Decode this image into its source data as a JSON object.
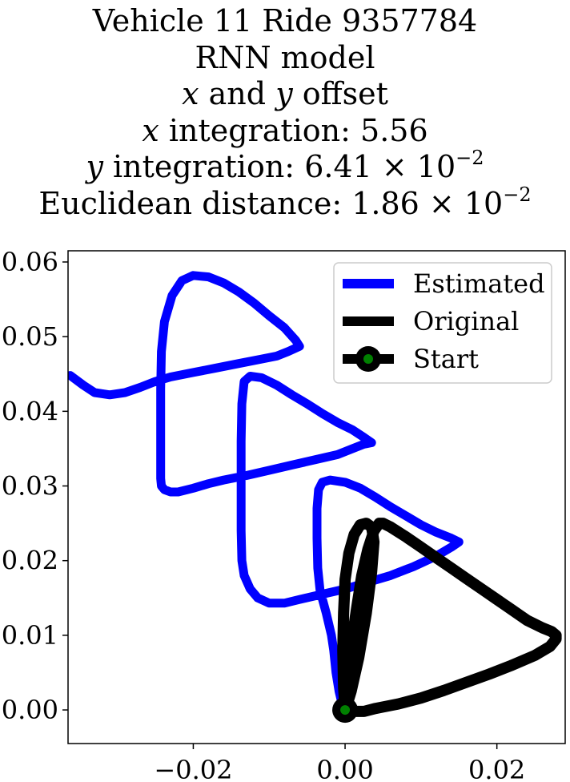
{
  "title": {
    "line1": "Vehicle 11 Ride 9357784",
    "line2": "RNN model",
    "line3_var_x": "x",
    "line3_mid": " and ",
    "line3_var_y": "y",
    "line3_end": " offset",
    "line4_var": "x",
    "line4_text": " integration: 5.56",
    "line5_var": "y",
    "line5_text": " integration: 6.41 × 10",
    "line5_exp": "−2",
    "line6_text": "Euclidean distance: 1.86 × 10",
    "line6_exp": "−2"
  },
  "chart_data": {
    "type": "line",
    "xlim": [
      -0.0365,
      0.029
    ],
    "ylim": [
      -0.0045,
      0.0615
    ],
    "xticks": [
      -0.02,
      0.0,
      0.02
    ],
    "xtick_labels": [
      "−0.02",
      "0.00",
      "0.02"
    ],
    "yticks": [
      0.0,
      0.01,
      0.02,
      0.03,
      0.04,
      0.05,
      0.06
    ],
    "ytick_labels": [
      "0.00",
      "0.01",
      "0.02",
      "0.03",
      "0.04",
      "0.05",
      "0.06"
    ],
    "grid": false,
    "legend_position": "top-right",
    "series": [
      {
        "name": "Estimated",
        "color": "#0000ff",
        "x": [
          -0.0362,
          -0.0345,
          -0.033,
          -0.031,
          -0.029,
          -0.027,
          -0.025,
          -0.023,
          -0.02,
          -0.017,
          -0.014,
          -0.011,
          -0.009,
          -0.0075,
          -0.006,
          -0.0065,
          -0.008,
          -0.01,
          -0.012,
          -0.014,
          -0.016,
          -0.018,
          -0.02,
          -0.0215,
          -0.0228,
          -0.0238,
          -0.0242,
          -0.0243,
          -0.0243,
          -0.0243,
          -0.0243,
          -0.0243,
          -0.0242,
          -0.0238,
          -0.023,
          -0.022,
          -0.02,
          -0.018,
          -0.016,
          -0.013,
          -0.01,
          -0.007,
          -0.004,
          -0.001,
          0.001,
          0.0025,
          0.0035,
          0.0025,
          0.001,
          -0.001,
          -0.003,
          -0.005,
          -0.007,
          -0.009,
          -0.011,
          -0.0125,
          -0.0133,
          -0.0136,
          -0.0137,
          -0.0137,
          -0.0137,
          -0.0136,
          -0.0133,
          -0.0125,
          -0.0115,
          -0.01,
          -0.008,
          -0.006,
          -0.003,
          0.0,
          0.003,
          0.006,
          0.009,
          0.012,
          0.014,
          0.015,
          0.014,
          0.012,
          0.01,
          0.008,
          0.006,
          0.004,
          0.002,
          0.0,
          -0.002,
          -0.003,
          -0.0035,
          -0.0037,
          -0.0037,
          -0.0036,
          -0.0033,
          -0.0025,
          -0.0018,
          -0.0015,
          -0.0012,
          -0.0008,
          -0.0004,
          -0.0001
        ],
        "y": [
          0.0448,
          0.0435,
          0.0425,
          0.0422,
          0.0425,
          0.0432,
          0.044,
          0.0446,
          0.0452,
          0.0458,
          0.0464,
          0.047,
          0.0474,
          0.048,
          0.0487,
          0.0495,
          0.0512,
          0.0528,
          0.0545,
          0.056,
          0.0572,
          0.058,
          0.0582,
          0.0575,
          0.0555,
          0.052,
          0.048,
          0.043,
          0.038,
          0.034,
          0.0325,
          0.031,
          0.03,
          0.0295,
          0.0292,
          0.0292,
          0.0297,
          0.0303,
          0.0308,
          0.0314,
          0.0321,
          0.0328,
          0.0335,
          0.0342,
          0.035,
          0.0356,
          0.0358,
          0.0365,
          0.0375,
          0.0385,
          0.0397,
          0.041,
          0.0422,
          0.0435,
          0.0445,
          0.0447,
          0.044,
          0.041,
          0.036,
          0.03,
          0.024,
          0.02,
          0.018,
          0.0162,
          0.015,
          0.0143,
          0.0143,
          0.0148,
          0.0155,
          0.0162,
          0.0171,
          0.018,
          0.0192,
          0.0206,
          0.0218,
          0.0225,
          0.023,
          0.0238,
          0.0248,
          0.026,
          0.0272,
          0.0285,
          0.0297,
          0.0305,
          0.0308,
          0.0305,
          0.0295,
          0.027,
          0.023,
          0.019,
          0.016,
          0.013,
          0.01,
          0.008,
          0.005,
          0.0025,
          0.0008,
          0.0001
        ]
      },
      {
        "name": "Original",
        "color": "#000000",
        "x": [
          0.0,
          0.0003,
          0.0008,
          0.0015,
          0.0022,
          0.003,
          0.0038,
          0.0045,
          0.005,
          0.006,
          0.008,
          0.01,
          0.012,
          0.014,
          0.016,
          0.018,
          0.02,
          0.022,
          0.024,
          0.026,
          0.0272,
          0.0278,
          0.0278,
          0.027,
          0.025,
          0.022,
          0.019,
          0.016,
          0.013,
          0.01,
          0.007,
          0.004,
          0.0025,
          0.0015,
          0.0008,
          0.0003,
          0.0,
          -0.0002,
          -0.0003,
          -0.0002,
          0.0,
          0.0005,
          0.0012,
          0.002,
          0.0028,
          0.0035,
          0.0038,
          0.0035,
          0.0028,
          0.0018,
          0.0008,
          0.0002,
          0.0
        ],
        "y": [
          0.0,
          0.0035,
          0.0085,
          0.0135,
          0.018,
          0.0215,
          0.024,
          0.025,
          0.025,
          0.0245,
          0.0232,
          0.0218,
          0.0204,
          0.019,
          0.0176,
          0.0162,
          0.0148,
          0.0134,
          0.012,
          0.011,
          0.0105,
          0.01,
          0.0095,
          0.0085,
          0.0073,
          0.006,
          0.0048,
          0.0037,
          0.0026,
          0.0016,
          0.0008,
          0.0002,
          -0.0002,
          -0.0002,
          0.0,
          0.0,
          0.0,
          0.003,
          0.008,
          0.013,
          0.0175,
          0.021,
          0.0235,
          0.0248,
          0.025,
          0.0245,
          0.0225,
          0.0185,
          0.013,
          0.007,
          0.0025,
          0.0005,
          0.0
        ]
      }
    ],
    "start": {
      "name": "Start",
      "x": 0.0,
      "y": 0.0,
      "color": "#008000",
      "edgecolor": "#000000"
    }
  }
}
